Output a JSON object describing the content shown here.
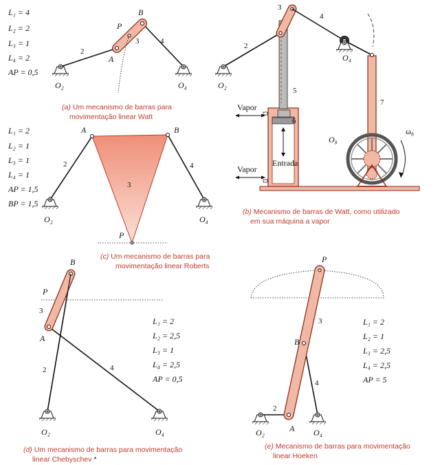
{
  "watt": {
    "params": [
      "L₁ = 4",
      "L₂ = 2",
      "L₃ = 1",
      "L₄ = 2",
      "AP = 0,5"
    ],
    "labels": {
      "B": "B",
      "P": "P",
      "A": "A",
      "O2": "O₂",
      "O4": "O₄",
      "l2": "2",
      "l3": "3",
      "l4": "4"
    },
    "caption_tag": "(a)",
    "caption_line1": "Um mecanismo de barras para",
    "caption_line2": "movimentação linear Watt"
  },
  "steam": {
    "labels": {
      "l3": "3",
      "l4": "4",
      "l2": "2",
      "l5": "5",
      "l6": "6",
      "l7": "7",
      "O2": "O₂",
      "O4": "O₄",
      "O8": "O₈",
      "omega": "ω₈",
      "vapor1": "Vapor",
      "vapor2": "Vapor",
      "entrada": "Entrada"
    },
    "caption_tag": "(b)",
    "caption_line1": "Mecanismo de barras de Watt, como utilizado",
    "caption_line2": "em sua máquina a vapor"
  },
  "roberts": {
    "params": [
      "L₁ = 2",
      "L₂ = 1",
      "L₃ = 1",
      "L₄ = 1",
      "AP = 1,5",
      "BP = 1,5"
    ],
    "labels": {
      "A": "A",
      "B": "B",
      "P": "P",
      "O2": "O₂",
      "O4": "O₄",
      "l2": "2",
      "l3": "3",
      "l4": "4"
    },
    "caption_tag": "(c)",
    "caption_line1": "Um mecanismo de barras para",
    "caption_line2": "movimentação linear Roberts"
  },
  "chebyschev": {
    "params": [
      "L₁ = 2",
      "L₂ = 2,5",
      "L₃ = 1",
      "L₄ = 2,5",
      "AP = 0,5"
    ],
    "labels": {
      "B": "B",
      "P": "P",
      "A": "A",
      "O2": "O₂",
      "O4": "O₄",
      "l2": "2",
      "l3": "3",
      "l4": "4"
    },
    "caption_tag": "(d)",
    "caption_line1": "Um mecanismo de barras para movimentação",
    "caption_line2": "linear Chebyschev",
    "caption_mark": "*"
  },
  "hoeken": {
    "params": [
      "L₁ = 2",
      "L₂ = 1",
      "L₃ = 2,5",
      "L₄ = 2,5",
      "AP = 5"
    ],
    "labels": {
      "P": "P",
      "B": "B",
      "A": "A",
      "O2": "O₂",
      "O4": "O₄",
      "l2": "2",
      "l3": "3",
      "l4": "4"
    },
    "caption_tag": "(e)",
    "caption_line1": "Mecanismo de barras para movimentação",
    "caption_line2": "linear Hoeken"
  }
}
